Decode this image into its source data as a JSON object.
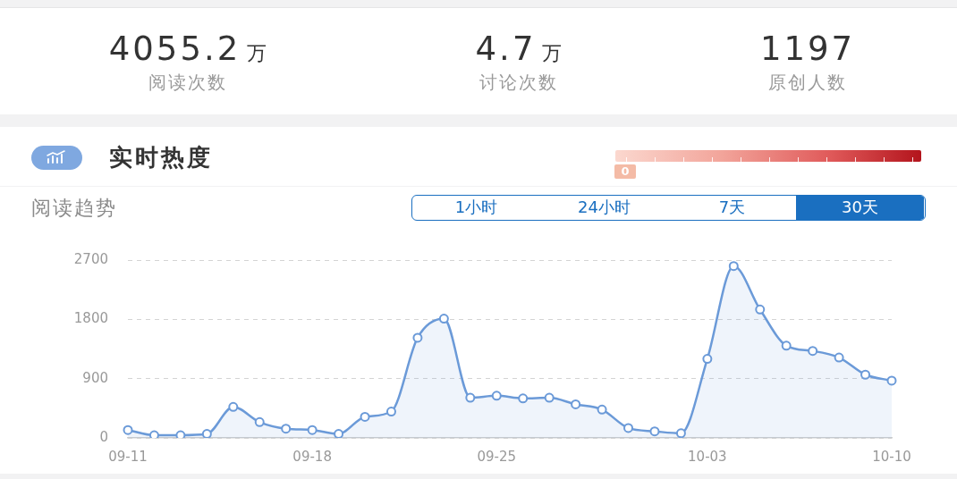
{
  "chart_data": [
    {
      "type": "other",
      "annotations": [
        "4055.2 万",
        "阅读次数",
        "4.7 万",
        "讨论次数",
        "1197",
        "原创人数"
      ]
    },
    {
      "type": "other",
      "title": "实时热度",
      "annotations": [
        "0"
      ]
    },
    {
      "type": "area",
      "title": "阅读趋势",
      "annotations": [
        "1小时",
        "24小时",
        "7天",
        "30天"
      ],
      "categories": [
        "09-11",
        null,
        null,
        null,
        null,
        null,
        null,
        "09-18",
        null,
        null,
        null,
        null,
        null,
        null,
        "09-25",
        null,
        null,
        null,
        null,
        null,
        null,
        null,
        "10-03",
        null,
        null,
        null,
        null,
        null,
        null,
        "10-10"
      ],
      "series": [
        {
          "color": "#6b9ad8",
          "values": [
            120,
            40,
            40,
            60,
            470,
            240,
            140,
            120,
            60,
            320,
            400,
            1520,
            1810,
            610,
            640,
            600,
            610,
            510,
            430,
            150,
            100,
            70,
            1200,
            2610,
            1950,
            1400,
            1320,
            1220,
            960,
            870
          ]
        }
      ],
      "ylim": [
        0,
        2700
      ],
      "yticks": [
        0,
        900,
        1800,
        2700
      ],
      "grid": "y",
      "marker": "circle"
    }
  ]
}
